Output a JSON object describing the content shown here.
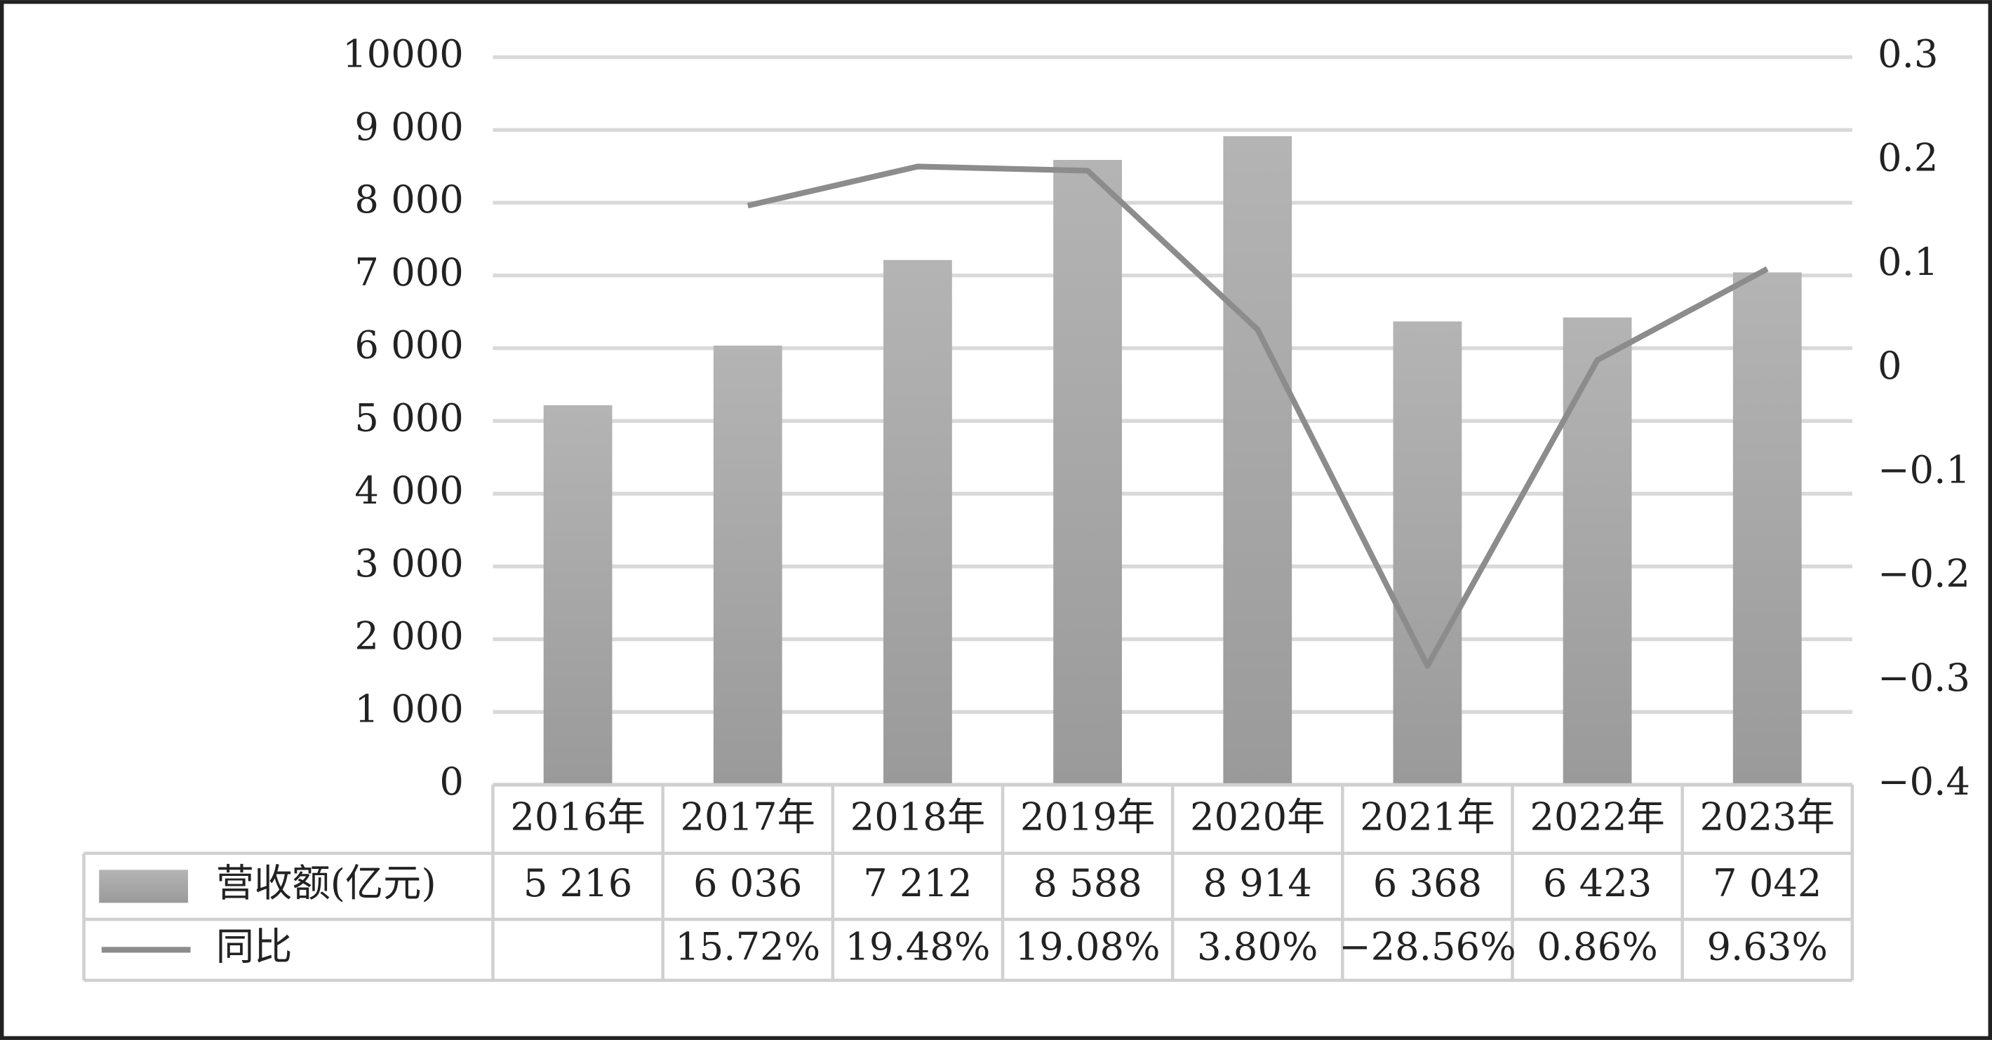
{
  "chart_data": {
    "type": "bar",
    "categories": [
      "2016年",
      "2017年",
      "2018年",
      "2019年",
      "2020年",
      "2021年",
      "2022年",
      "2023年"
    ],
    "series": [
      {
        "name": "营收额(亿元)",
        "type": "bar",
        "color": "#a6a6a6",
        "values": [
          5216,
          6036,
          7212,
          8588,
          8914,
          6368,
          6423,
          7042
        ],
        "value_labels": [
          "5 216",
          "6 036",
          "7 212",
          "8 588",
          "8 914",
          "6 368",
          "6 423",
          "7 042"
        ]
      },
      {
        "name": "同比",
        "type": "line",
        "axis": "y2",
        "color": "#8c8c8c",
        "values": [
          null,
          0.1572,
          0.1948,
          0.1908,
          0.038,
          -0.2856,
          0.0086,
          0.0963
        ],
        "value_labels": [
          null,
          "15.72%",
          "19.48%",
          "19.08%",
          "3.80%",
          "−28.56%",
          "0.86%",
          "9.63%"
        ]
      }
    ],
    "ylim": [
      0,
      10000
    ],
    "yticks": [
      0,
      {
        "value": 1000,
        "label": "1 000"
      },
      {
        "value": 2000,
        "label": "2 000"
      },
      {
        "value": 3000,
        "label": "3 000"
      },
      {
        "value": 4000,
        "label": "4 000"
      },
      {
        "value": 5000,
        "label": "5 000"
      },
      {
        "value": 6000,
        "label": "6 000"
      },
      {
        "value": 7000,
        "label": "7 000"
      },
      {
        "value": 8000,
        "label": "8 000"
      },
      {
        "value": 9000,
        "label": "9 000"
      },
      10000
    ],
    "y2lim": [
      -0.4,
      0.3
    ],
    "y2ticks": [
      {
        "value": -0.4,
        "label": "−0.4"
      },
      {
        "value": -0.3,
        "label": "−0.3"
      },
      {
        "value": -0.2,
        "label": "−0.2"
      },
      {
        "value": -0.1,
        "label": "−0.1"
      },
      0,
      0.1,
      0.2,
      0.3
    ],
    "grid": true,
    "data_table": true
  }
}
